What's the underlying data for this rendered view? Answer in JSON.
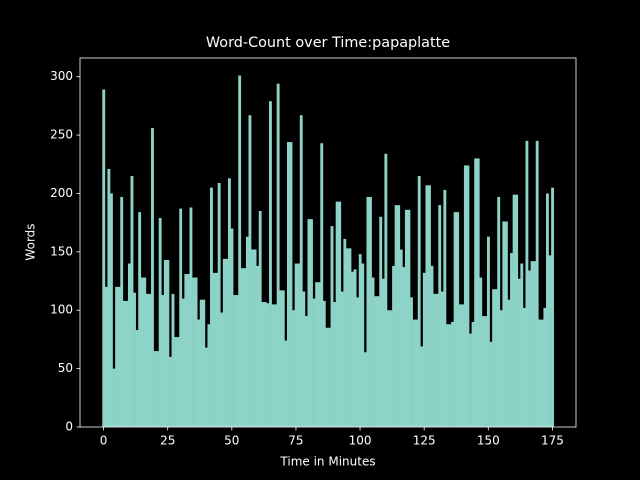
{
  "chart_data": {
    "type": "bar",
    "title": "Word-Count over Time:papaplatte",
    "xlabel": "Time in Minutes",
    "ylabel": "Words",
    "color": "#8dd3c7",
    "x": [
      0,
      1,
      2,
      3,
      4,
      5,
      6,
      7,
      8,
      9,
      10,
      11,
      12,
      13,
      14,
      15,
      16,
      17,
      18,
      19,
      20,
      21,
      22,
      23,
      24,
      25,
      26,
      27,
      28,
      29,
      30,
      31,
      32,
      33,
      34,
      35,
      36,
      37,
      38,
      39,
      40,
      41,
      42,
      43,
      44,
      45,
      46,
      47,
      48,
      49,
      50,
      51,
      52,
      53,
      54,
      55,
      56,
      57,
      58,
      59,
      60,
      61,
      62,
      63,
      64,
      65,
      66,
      67,
      68,
      69,
      70,
      71,
      72,
      73,
      74,
      75,
      76,
      77,
      78,
      79,
      80,
      81,
      82,
      83,
      84,
      85,
      86,
      87,
      88,
      89,
      90,
      91,
      92,
      93,
      94,
      95,
      96,
      97,
      98,
      99,
      100,
      101,
      102,
      103,
      104,
      105,
      106,
      107,
      108,
      109,
      110,
      111,
      112,
      113,
      114,
      115,
      116,
      117,
      118,
      119,
      120,
      121,
      122,
      123,
      124,
      125,
      126,
      127,
      128,
      129,
      130,
      131,
      132,
      133,
      134,
      135,
      136,
      137,
      138,
      139,
      140,
      141,
      142,
      143,
      144,
      145,
      146,
      147,
      148,
      149,
      150,
      151,
      152,
      153,
      154,
      155,
      156,
      157,
      158,
      159,
      160,
      161,
      162,
      163,
      164,
      165,
      166,
      167,
      168,
      169,
      170,
      171,
      172,
      173,
      174,
      175
    ],
    "values": [
      289,
      120,
      221,
      200,
      50,
      120,
      120,
      197,
      108,
      108,
      140,
      215,
      115,
      83,
      184,
      128,
      128,
      114,
      114,
      256,
      65,
      65,
      179,
      113,
      143,
      143,
      60,
      114,
      77,
      77,
      187,
      110,
      131,
      131,
      188,
      128,
      128,
      92,
      109,
      109,
      68,
      88,
      205,
      132,
      132,
      209,
      98,
      144,
      144,
      213,
      170,
      113,
      113,
      301,
      136,
      136,
      163,
      267,
      152,
      152,
      138,
      185,
      107,
      107,
      106,
      279,
      105,
      105,
      294,
      117,
      117,
      74,
      244,
      244,
      100,
      140,
      140,
      267,
      116,
      95,
      178,
      178,
      110,
      124,
      124,
      243,
      108,
      85,
      85,
      172,
      107,
      193,
      193,
      116,
      161,
      153,
      153,
      133,
      135,
      111,
      148,
      140,
      64,
      197,
      197,
      128,
      112,
      112,
      180,
      127,
      234,
      100,
      100,
      138,
      190,
      190,
      152,
      137,
      186,
      186,
      111,
      92,
      92,
      215,
      69,
      132,
      207,
      207,
      138,
      114,
      114,
      190,
      116,
      203,
      88,
      88,
      90,
      184,
      184,
      105,
      105,
      224,
      224,
      80,
      90,
      230,
      230,
      128,
      95,
      95,
      163,
      73,
      118,
      118,
      197,
      100,
      176,
      176,
      109,
      149,
      199,
      199,
      127,
      140,
      102,
      245,
      134,
      142,
      142,
      245,
      92,
      92,
      102,
      200,
      147,
      205
    ],
    "xlim": [
      -9.2,
      184.2
    ],
    "xticks": [
      0,
      25,
      50,
      75,
      100,
      125,
      150,
      175
    ],
    "ylim": [
      0,
      316
    ],
    "yticks": [
      0,
      50,
      100,
      150,
      200,
      250,
      300
    ]
  }
}
